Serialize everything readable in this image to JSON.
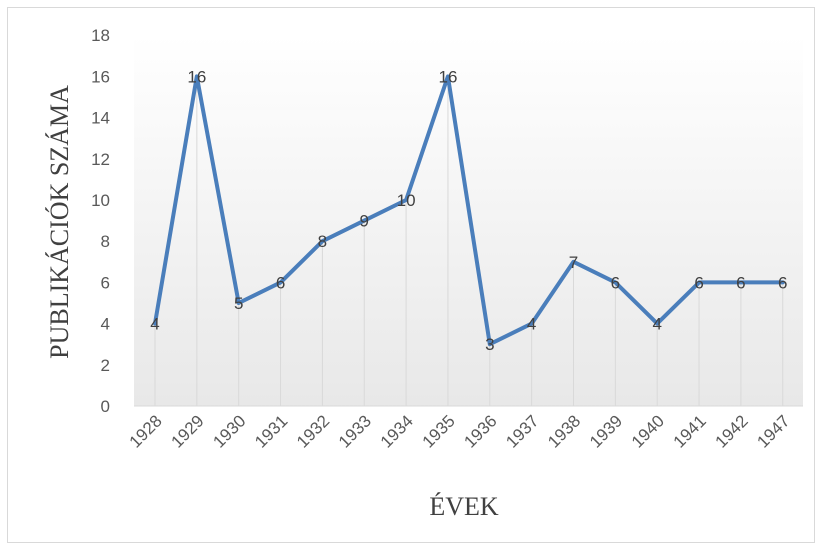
{
  "chart_data": {
    "type": "line",
    "title": "",
    "xlabel": "ÉVEK",
    "ylabel": "PUBLIKÁCIÓK SZÁMA",
    "categories": [
      "1928",
      "1929",
      "1930",
      "1931",
      "1932",
      "1933",
      "1934",
      "1935",
      "1936",
      "1937",
      "1938",
      "1939",
      "1940",
      "1941",
      "1942",
      "1947"
    ],
    "series": [
      {
        "values": [
          4,
          16,
          5,
          6,
          8,
          9,
          10,
          16,
          3,
          4,
          7,
          6,
          4,
          6,
          6,
          6
        ]
      }
    ],
    "ylim": [
      0,
      18
    ],
    "yticks": [
      0,
      2,
      4,
      6,
      8,
      10,
      12,
      14,
      16,
      18
    ],
    "grid": false,
    "drop_lines": true,
    "data_labels": true,
    "line_color": "#4a7ebb",
    "legend": "none"
  }
}
